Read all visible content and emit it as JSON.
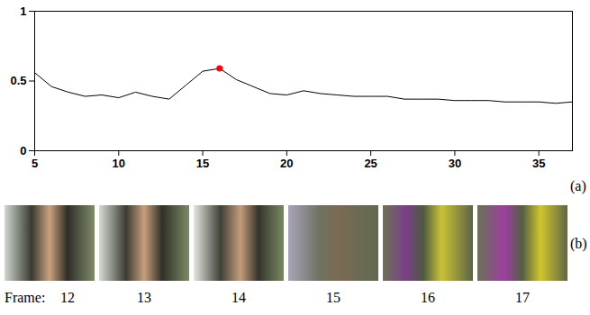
{
  "chart_data": {
    "type": "line",
    "x": [
      5,
      6,
      7,
      8,
      9,
      10,
      11,
      12,
      13,
      14,
      15,
      16,
      17,
      18,
      19,
      20,
      21,
      22,
      23,
      24,
      25,
      26,
      27,
      28,
      29,
      30,
      31,
      32,
      33,
      34,
      35,
      36,
      37
    ],
    "values": [
      0.56,
      0.46,
      0.42,
      0.39,
      0.4,
      0.38,
      0.42,
      0.39,
      0.37,
      0.47,
      0.57,
      0.59,
      0.51,
      0.46,
      0.41,
      0.4,
      0.43,
      0.41,
      0.4,
      0.39,
      0.39,
      0.39,
      0.37,
      0.37,
      0.37,
      0.36,
      0.36,
      0.36,
      0.35,
      0.35,
      0.35,
      0.34,
      0.35
    ],
    "color": "#000000",
    "xlim": [
      5,
      37
    ],
    "xticks": [
      5,
      10,
      15,
      20,
      25,
      30,
      35
    ],
    "ylim": [
      0,
      1
    ],
    "yticks": [
      0,
      0.5,
      1
    ],
    "grid": false,
    "highlight": {
      "x": 16,
      "y": 0.59,
      "color": "#ff0000"
    },
    "panel_labels": [
      "(a)",
      "(b)"
    ],
    "frames": {
      "prefix": "Frame:",
      "numbers": [
        12,
        13,
        14,
        15,
        16,
        17
      ]
    }
  }
}
